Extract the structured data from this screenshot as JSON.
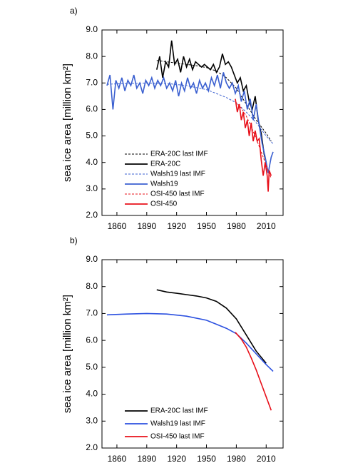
{
  "chart_data": [
    {
      "type": "line",
      "panel_label": "a)",
      "ylabel": "sea ice area [million km²]",
      "xlim": [
        1845,
        2027
      ],
      "xticks": [
        1860,
        1890,
        1920,
        1950,
        1980,
        2010
      ],
      "ylim": [
        2,
        9
      ],
      "yticks": [
        {
          "value": 2,
          "label": "2.0"
        },
        {
          "value": 3,
          "label": "3.0"
        },
        {
          "value": 4,
          "label": "4.0"
        },
        {
          "value": 5,
          "label": "5.0"
        },
        {
          "value": 6,
          "label": "6.0"
        },
        {
          "value": 7,
          "label": "7.0"
        },
        {
          "value": 8,
          "label": "8.0"
        },
        {
          "value": 9,
          "label": "9.0"
        }
      ],
      "legend": "lower left",
      "series": [
        {
          "name": "ERA-20C last IMF",
          "color": "#000000",
          "dashed": true,
          "x": [
            1900,
            1910,
            1920,
            1930,
            1940,
            1950,
            1960,
            1970,
            1980,
            1990,
            2000,
            2010,
            2015
          ],
          "values": [
            7.85,
            7.8,
            7.75,
            7.7,
            7.65,
            7.58,
            7.45,
            7.2,
            6.8,
            6.2,
            5.6,
            5.1,
            4.8
          ]
        },
        {
          "name": "ERA-20C",
          "color": "#000000",
          "dashed": false,
          "x": [
            1900,
            1903,
            1906,
            1909,
            1912,
            1915,
            1918,
            1921,
            1924,
            1927,
            1930,
            1933,
            1936,
            1939,
            1942,
            1945,
            1948,
            1951,
            1954,
            1957,
            1960,
            1963,
            1966,
            1969,
            1972,
            1975,
            1978,
            1981,
            1984,
            1987,
            1990,
            1993,
            1996,
            1999,
            2002,
            2005,
            2008,
            2010
          ],
          "values": [
            7.5,
            8.0,
            7.2,
            7.8,
            7.6,
            8.6,
            7.7,
            7.9,
            7.4,
            8.0,
            7.6,
            7.9,
            7.5,
            7.8,
            7.7,
            7.6,
            7.7,
            7.6,
            7.5,
            7.7,
            7.4,
            7.6,
            8.1,
            7.7,
            7.8,
            7.6,
            7.3,
            7.0,
            7.2,
            6.7,
            6.9,
            6.3,
            6.0,
            6.5,
            5.6,
            5.1,
            4.3,
            4.0
          ]
        },
        {
          "name": "Walsh19 last IMF",
          "color": "#3a5fd0",
          "dashed": true,
          "x": [
            1850,
            1870,
            1890,
            1910,
            1930,
            1950,
            1960,
            1970,
            1980,
            1990,
            2000,
            2010,
            2017
          ],
          "values": [
            6.95,
            6.98,
            7.0,
            6.98,
            6.9,
            6.75,
            6.6,
            6.45,
            6.25,
            5.9,
            5.5,
            5.0,
            4.7
          ]
        },
        {
          "name": "Walsh19",
          "color": "#3a5fd0",
          "dashed": false,
          "x": [
            1850,
            1853,
            1856,
            1859,
            1862,
            1865,
            1868,
            1871,
            1874,
            1877,
            1880,
            1883,
            1886,
            1889,
            1892,
            1895,
            1898,
            1901,
            1904,
            1907,
            1910,
            1913,
            1916,
            1919,
            1922,
            1925,
            1928,
            1931,
            1934,
            1937,
            1940,
            1943,
            1946,
            1949,
            1952,
            1955,
            1958,
            1961,
            1964,
            1967,
            1970,
            1973,
            1976,
            1979,
            1982,
            1985,
            1988,
            1991,
            1994,
            1997,
            2000,
            2003,
            2006,
            2009,
            2012,
            2015,
            2017
          ],
          "values": [
            6.9,
            7.3,
            6.0,
            7.1,
            6.8,
            7.2,
            6.7,
            7.1,
            6.9,
            7.3,
            6.8,
            7.0,
            6.6,
            7.1,
            6.9,
            7.2,
            6.8,
            7.1,
            6.9,
            7.2,
            6.8,
            7.0,
            6.7,
            7.1,
            6.5,
            7.0,
            6.7,
            7.2,
            6.8,
            7.0,
            6.6,
            7.1,
            6.8,
            7.0,
            6.7,
            7.2,
            6.9,
            7.3,
            6.8,
            7.4,
            7.0,
            6.8,
            7.0,
            6.6,
            6.9,
            6.3,
            6.7,
            6.0,
            6.4,
            5.6,
            6.2,
            5.4,
            4.7,
            4.2,
            3.6,
            4.2,
            4.4
          ]
        },
        {
          "name": "OSI-450 last IMF",
          "color": "#e8101a",
          "dashed": true,
          "x": [
            1979,
            1985,
            1990,
            1995,
            2000,
            2005,
            2010,
            2015
          ],
          "values": [
            6.3,
            6.05,
            5.75,
            5.35,
            4.9,
            4.4,
            3.9,
            3.4
          ]
        },
        {
          "name": "OSI-450",
          "color": "#e8101a",
          "dashed": false,
          "x": [
            1979,
            1981,
            1983,
            1985,
            1987,
            1989,
            1991,
            1993,
            1995,
            1997,
            1999,
            2001,
            2003,
            2005,
            2007,
            2009,
            2011,
            2012,
            2013,
            2015
          ],
          "values": [
            6.4,
            5.9,
            6.2,
            5.6,
            5.9,
            5.3,
            5.6,
            5.0,
            5.5,
            4.8,
            5.2,
            4.8,
            4.9,
            4.1,
            3.5,
            4.0,
            3.5,
            2.9,
            3.7,
            3.5
          ]
        }
      ]
    },
    {
      "type": "line",
      "panel_label": "b)",
      "ylabel": "sea ice area [million km²]",
      "xlim": [
        1845,
        2027
      ],
      "xticks": [
        1860,
        1890,
        1920,
        1950,
        1980,
        2010
      ],
      "ylim": [
        2,
        9
      ],
      "yticks": [
        {
          "value": 2,
          "label": "2.0"
        },
        {
          "value": 3,
          "label": "3.0"
        },
        {
          "value": 4,
          "label": "4.0"
        },
        {
          "value": 5,
          "label": "5.0"
        },
        {
          "value": 6,
          "label": "6.0"
        },
        {
          "value": 7,
          "label": "7.0"
        },
        {
          "value": 8,
          "label": "8.0"
        },
        {
          "value": 9,
          "label": "9.0"
        }
      ],
      "legend": "lower left",
      "series": [
        {
          "name": "ERA-20C last IMF",
          "color": "#000000",
          "dashed": false,
          "x": [
            1900,
            1910,
            1920,
            1930,
            1940,
            1950,
            1960,
            1970,
            1980,
            1990,
            2000,
            2010
          ],
          "values": [
            7.88,
            7.8,
            7.75,
            7.7,
            7.65,
            7.58,
            7.45,
            7.2,
            6.8,
            6.2,
            5.6,
            5.15
          ]
        },
        {
          "name": "Walsh19 last IMF",
          "color": "#2b50e0",
          "dashed": false,
          "x": [
            1850,
            1870,
            1890,
            1910,
            1930,
            1950,
            1960,
            1970,
            1980,
            1990,
            2000,
            2010,
            2017
          ],
          "values": [
            6.95,
            6.98,
            7.0,
            6.98,
            6.9,
            6.75,
            6.6,
            6.45,
            6.25,
            5.9,
            5.5,
            5.1,
            4.85
          ]
        },
        {
          "name": "OSI-450 last IMF",
          "color": "#e8101a",
          "dashed": false,
          "x": [
            1979,
            1985,
            1990,
            1995,
            2000,
            2005,
            2010,
            2015
          ],
          "values": [
            6.3,
            6.05,
            5.75,
            5.35,
            4.9,
            4.4,
            3.9,
            3.4
          ]
        }
      ]
    }
  ]
}
